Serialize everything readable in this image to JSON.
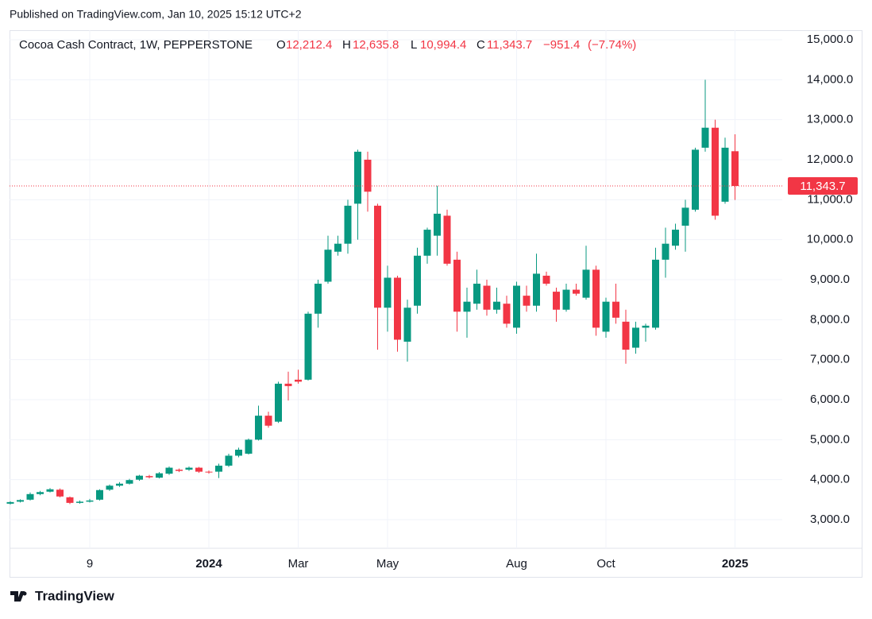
{
  "published": "Published on TradingView.com, Jan 10, 2025 15:12 UTC+2",
  "footer": "TradingView",
  "chart_data": {
    "type": "candlestick",
    "title": "Cocoa Cash Contract, 1W, PEPPERSTONE",
    "legend_keys": [
      "O",
      "H",
      "L",
      "C"
    ],
    "legend_values": [
      {
        "value": 12212.4,
        "label": "12,212.4"
      },
      {
        "value": 12635.8,
        "label": "12,635.8"
      },
      {
        "value": 10994.4,
        "label": "10,994.4"
      },
      {
        "value": 11343.7,
        "label": "11,343.7"
      }
    ],
    "change": {
      "value": -951.4,
      "label": "−951.4"
    },
    "change_pct": {
      "value": -7.74,
      "label": "(−7.74%)"
    },
    "last_price": {
      "value": 11343.7,
      "label": "11,343.7"
    },
    "up_color": "#089981",
    "down_color": "#f23645",
    "categories": [
      null,
      null,
      null,
      null,
      null,
      null,
      null,
      null,
      "9",
      null,
      null,
      null,
      null,
      null,
      null,
      null,
      null,
      null,
      null,
      null,
      "2024",
      null,
      null,
      null,
      null,
      null,
      null,
      null,
      null,
      "Mar",
      null,
      null,
      null,
      null,
      null,
      null,
      null,
      null,
      "May",
      null,
      null,
      null,
      null,
      null,
      null,
      null,
      null,
      null,
      null,
      null,
      null,
      "Aug",
      null,
      null,
      null,
      null,
      null,
      null,
      null,
      null,
      "Oct",
      null,
      null,
      null,
      null,
      null,
      null,
      null,
      null,
      null,
      null,
      null,
      null,
      "2025"
    ],
    "open": [
      3400,
      3450,
      3500,
      3640,
      3700,
      3750,
      3560,
      3420,
      3450,
      3500,
      3750,
      3850,
      3900,
      4000,
      4090,
      4050,
      4150,
      4250,
      4250,
      4300,
      4200,
      4200,
      4350,
      4600,
      4650,
      5000,
      5600,
      5450,
      6400,
      6500,
      6500,
      8150,
      8950,
      9700,
      9900,
      10900,
      12000,
      10850,
      8300,
      9050,
      7450,
      8350,
      9600,
      10100,
      10600,
      9500,
      8200,
      8400,
      8850,
      8250,
      8400,
      7800,
      8600,
      8350,
      9100,
      8700,
      8250,
      8750,
      8550,
      9250,
      7700,
      8450,
      7950,
      7300,
      7800,
      7800,
      9500,
      9850,
      10350,
      10750,
      12300,
      12800,
      10950,
      12212.4
    ],
    "high": [
      3460,
      3510,
      3680,
      3720,
      3790,
      3780,
      3580,
      3480,
      3520,
      3760,
      3880,
      3940,
      4020,
      4120,
      4120,
      4190,
      4330,
      4280,
      4330,
      4320,
      4230,
      4400,
      4650,
      4800,
      5030,
      5850,
      5700,
      6450,
      6700,
      6750,
      8200,
      9000,
      10100,
      10100,
      11000,
      12250,
      12200,
      10900,
      9350,
      9100,
      8500,
      9800,
      10300,
      11350,
      10750,
      9700,
      8800,
      9250,
      9000,
      8800,
      8600,
      8950,
      8850,
      9650,
      9200,
      8800,
      8900,
      8900,
      9850,
      9350,
      8550,
      8900,
      8250,
      7950,
      7900,
      9800,
      10300,
      10400,
      11000,
      12300,
      14000,
      13000,
      12550,
      12635.8
    ],
    "low": [
      3380,
      3430,
      3480,
      3610,
      3680,
      3560,
      3390,
      3400,
      3430,
      3480,
      3720,
      3820,
      3880,
      3970,
      4030,
      4030,
      4120,
      4190,
      4220,
      4170,
      4150,
      4040,
      4320,
      4560,
      4630,
      4980,
      5300,
      5420,
      5980,
      6400,
      6480,
      7800,
      8900,
      9600,
      9650,
      10000,
      10700,
      7250,
      7700,
      7200,
      6950,
      8150,
      9400,
      9600,
      9350,
      7700,
      7550,
      8250,
      8100,
      8150,
      7800,
      7650,
      8200,
      8200,
      8850,
      7950,
      8200,
      8600,
      8500,
      7600,
      7550,
      7900,
      6900,
      7150,
      7450,
      7750,
      9050,
      9750,
      9700,
      10700,
      12200,
      10500,
      10900,
      10994.4
    ],
    "close": [
      3440,
      3490,
      3640,
      3690,
      3760,
      3580,
      3420,
      3450,
      3480,
      3740,
      3850,
      3900,
      3990,
      4100,
      4060,
      4160,
      4300,
      4220,
      4300,
      4200,
      4180,
      4350,
      4600,
      4750,
      5000,
      5600,
      5350,
      6400,
      6340,
      6450,
      8150,
      8900,
      9750,
      9900,
      10850,
      12200,
      11200,
      8300,
      9050,
      7500,
      8300,
      9600,
      10250,
      10650,
      9400,
      8200,
      8450,
      8900,
      8250,
      8450,
      7900,
      8850,
      8350,
      9150,
      8900,
      8250,
      8750,
      8650,
      9250,
      7800,
      8450,
      8050,
      7250,
      7800,
      7850,
      9500,
      9900,
      10250,
      10800,
      12250,
      12800,
      10600,
      12300,
      11343.7
    ],
    "ylim": [
      2285,
      15238
    ],
    "yticks": [
      {
        "value": 3000,
        "label": "3,000.0"
      },
      {
        "value": 4000,
        "label": "4,000.0"
      },
      {
        "value": 5000,
        "label": "5,000.0"
      },
      {
        "value": 6000,
        "label": "6,000.0"
      },
      {
        "value": 7000,
        "label": "7,000.0"
      },
      {
        "value": 8000,
        "label": "8,000.0"
      },
      {
        "value": 9000,
        "label": "9,000.0"
      },
      {
        "value": 10000,
        "label": "10,000.0"
      },
      {
        "value": 11000,
        "label": "11,000.0"
      },
      {
        "value": 12000,
        "label": "12,000.0"
      },
      {
        "value": 13000,
        "label": "13,000.0"
      },
      {
        "value": 14000,
        "label": "14,000.0"
      },
      {
        "value": 15000,
        "label": "15,000.0"
      }
    ],
    "grid": true
  }
}
